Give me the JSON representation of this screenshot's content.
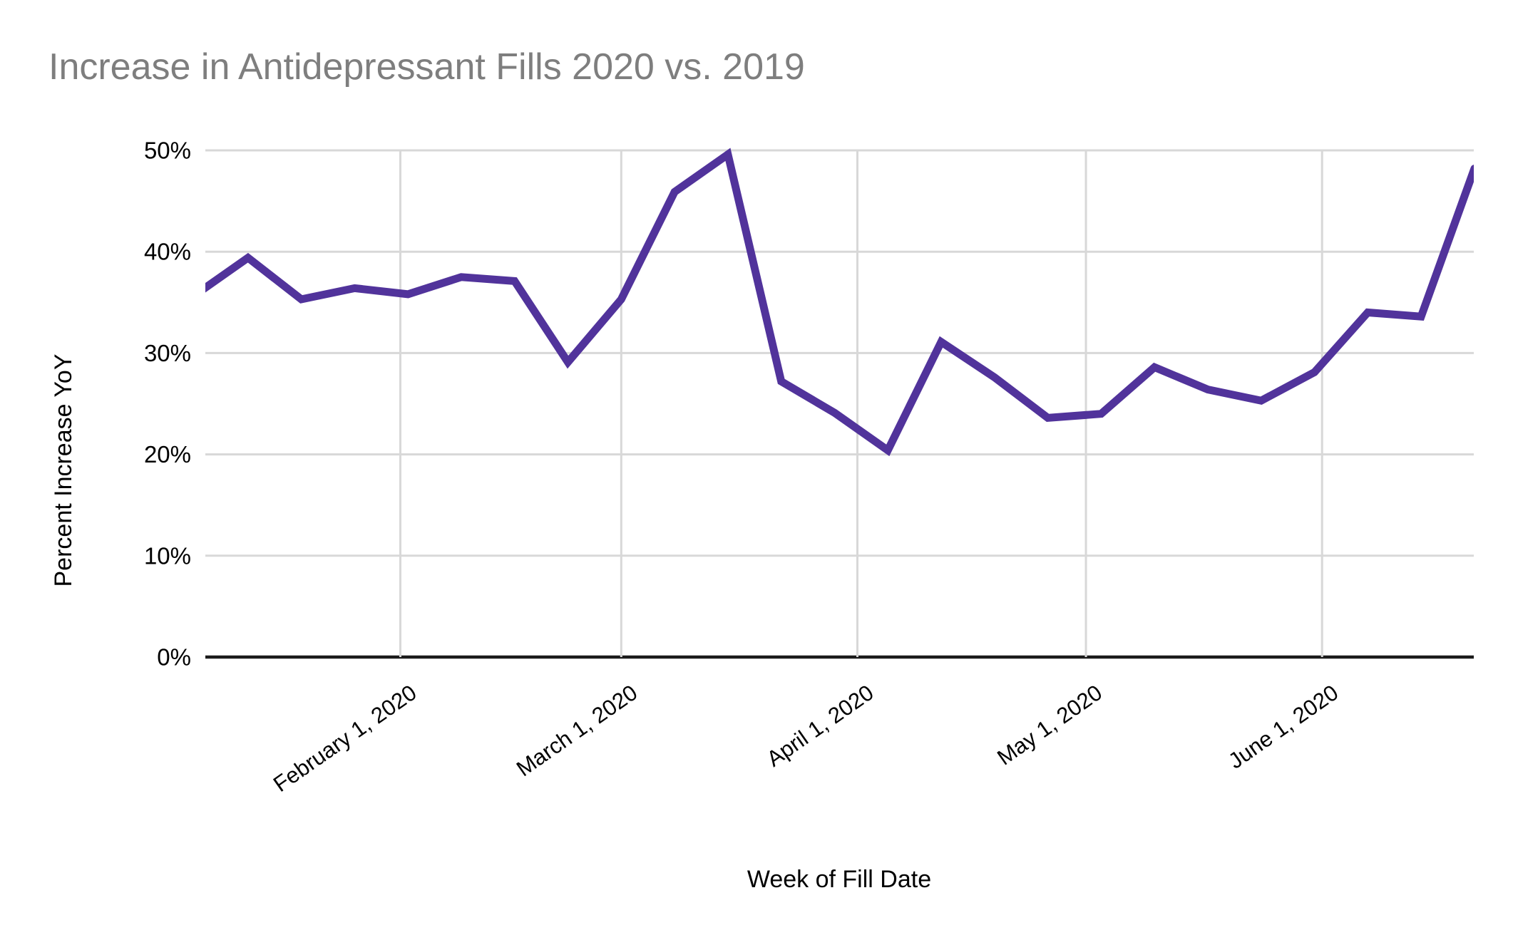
{
  "page": {
    "background": "#ffffff"
  },
  "chart_data": {
    "type": "line",
    "title": "Increase in Antidepressant Fills 2020 vs. 2019",
    "xlabel": "Week of Fill Date",
    "ylabel": "Percent Increase YoY",
    "grid": true,
    "legend": "none",
    "y_axis": {
      "range": [
        0,
        50
      ],
      "tick_step": 10,
      "ticks": [
        "0%",
        "10%",
        "20%",
        "30%",
        "40%",
        "50%"
      ]
    },
    "x_axis": {
      "ticks": [
        {
          "label": "February 1, 2020",
          "day": 27
        },
        {
          "label": "March 1, 2020",
          "day": 56
        },
        {
          "label": "April 1, 2020",
          "day": 87
        },
        {
          "label": "May 1, 2020",
          "day": 117
        },
        {
          "label": "June 1, 2020",
          "day": 148
        }
      ]
    },
    "series": [
      {
        "name": "Percent Increase YoY",
        "points": [
          {
            "week_of": "2020-01-05",
            "value": 35.7
          },
          {
            "week_of": "2020-01-12",
            "value": 39.4
          },
          {
            "week_of": "2020-01-19",
            "value": 35.3
          },
          {
            "week_of": "2020-01-26",
            "value": 36.4
          },
          {
            "week_of": "2020-02-02",
            "value": 35.8
          },
          {
            "week_of": "2020-02-09",
            "value": 37.5
          },
          {
            "week_of": "2020-02-16",
            "value": 37.1
          },
          {
            "week_of": "2020-02-23",
            "value": 29.1
          },
          {
            "week_of": "2020-03-01",
            "value": 35.3
          },
          {
            "week_of": "2020-03-08",
            "value": 45.9
          },
          {
            "week_of": "2020-03-15",
            "value": 49.6
          },
          {
            "week_of": "2020-03-22",
            "value": 27.2
          },
          {
            "week_of": "2020-03-29",
            "value": 24.1
          },
          {
            "week_of": "2020-04-05",
            "value": 20.4
          },
          {
            "week_of": "2020-04-12",
            "value": 31.1
          },
          {
            "week_of": "2020-04-19",
            "value": 27.6
          },
          {
            "week_of": "2020-04-26",
            "value": 23.6
          },
          {
            "week_of": "2020-05-03",
            "value": 24.0
          },
          {
            "week_of": "2020-05-10",
            "value": 28.6
          },
          {
            "week_of": "2020-05-17",
            "value": 26.4
          },
          {
            "week_of": "2020-05-24",
            "value": 25.3
          },
          {
            "week_of": "2020-05-31",
            "value": 28.1
          },
          {
            "week_of": "2020-06-07",
            "value": 34.0
          },
          {
            "week_of": "2020-06-14",
            "value": 33.6
          },
          {
            "week_of": "2020-06-21",
            "value": 48.2
          }
        ]
      }
    ],
    "colors": {
      "line": "#51339b",
      "grid": "#d8d8d8",
      "axis": "#1b1b1b",
      "title": "#7e7e7e",
      "label": "#000000"
    }
  }
}
